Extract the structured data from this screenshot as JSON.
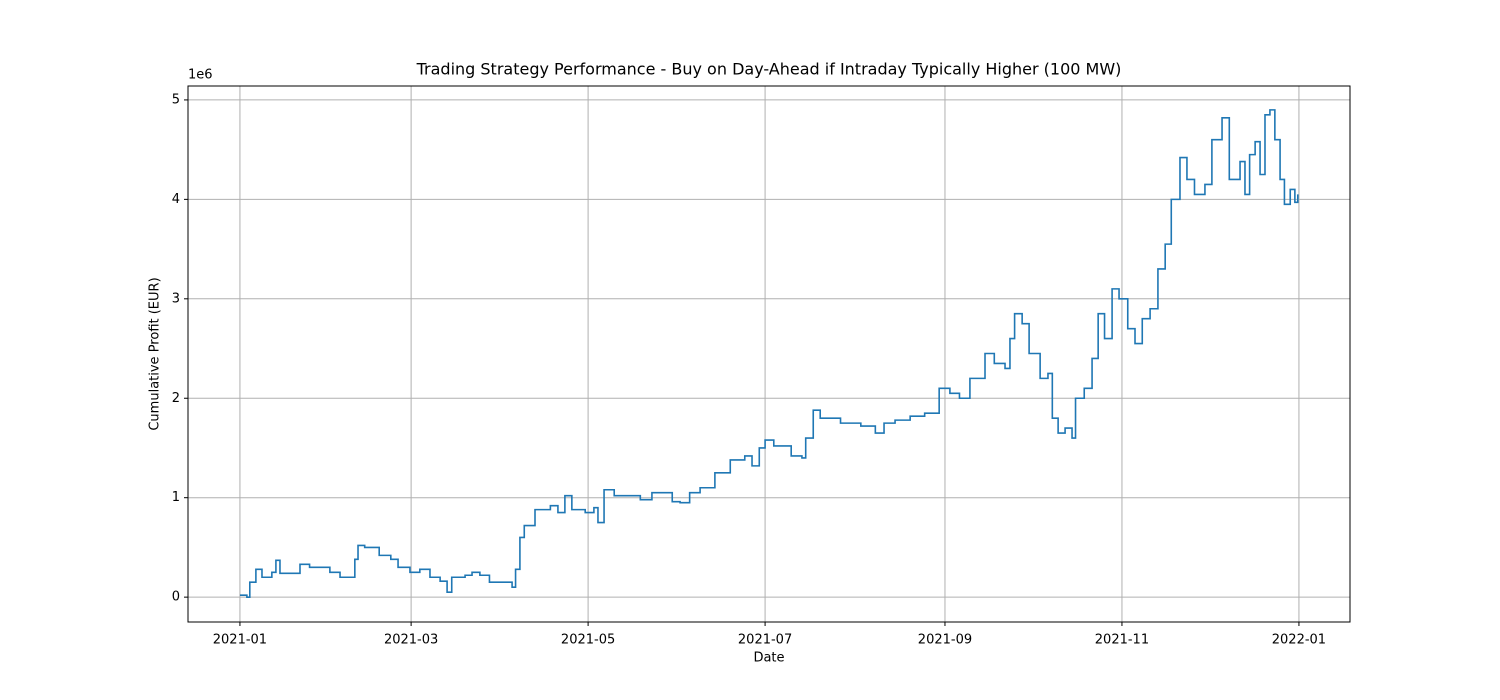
{
  "chart_data": {
    "type": "step",
    "title": "Trading Strategy Performance - Buy on Day-Ahead if Intraday Typically Higher (100 MW)",
    "x_label": "Date",
    "y_label": "Cumulative Profit (EUR)",
    "y_offset_label": "1e6",
    "grid": true,
    "xlim": [
      -17.9,
      382.6
    ],
    "xticks": [
      {
        "value": 0,
        "label": "2021-01"
      },
      {
        "value": 59,
        "label": "2021-03"
      },
      {
        "value": 120,
        "label": "2021-05"
      },
      {
        "value": 181,
        "label": "2021-07"
      },
      {
        "value": 243,
        "label": "2021-09"
      },
      {
        "value": 304,
        "label": "2021-11"
      },
      {
        "value": 365,
        "label": "2022-01"
      }
    ],
    "ylim": [
      -0.25,
      5.14
    ],
    "yticks": [
      0,
      1,
      2,
      3,
      4,
      5
    ],
    "x": [
      0,
      2.4,
      3.4,
      5.5,
      7.6,
      11,
      12.4,
      13.8,
      19,
      20.7,
      24,
      31,
      34.5,
      38,
      39.6,
      40.7,
      43,
      46.5,
      48,
      52,
      54.5,
      58.6,
      62,
      65.5,
      69,
      71.4,
      73,
      77.6,
      80,
      82.7,
      86,
      91,
      93.8,
      95,
      96.5,
      98,
      101.7,
      107,
      109.6,
      112,
      114.4,
      119,
      122,
      123.4,
      125.5,
      129,
      138,
      142,
      144.8,
      149,
      151.7,
      155,
      158.6,
      163.7,
      169,
      174,
      176.5,
      179,
      181,
      184,
      190,
      193.7,
      195,
      197.6,
      200,
      207,
      214,
      219,
      222,
      225.8,
      231,
      236,
      241,
      244.7,
      248,
      251.6,
      256.8,
      260,
      263.7,
      265.4,
      267,
      269.6,
      272,
      275.8,
      278.5,
      280,
      282,
      284.4,
      286.8,
      288,
      291,
      293.7,
      295.8,
      298,
      300.6,
      303,
      306,
      308.5,
      311,
      313.7,
      316.4,
      318.9,
      321,
      324,
      326.4,
      329,
      332.6,
      335,
      338.5,
      341,
      344.7,
      346.4,
      348,
      349.9,
      351.6,
      353.3,
      355,
      356.7,
      358.5,
      360,
      362,
      363.6,
      364.6
    ],
    "series": [
      {
        "name": "Cumulative Profit",
        "color": "#1f77b4",
        "values": [
          0.02,
          0.0,
          0.15,
          0.28,
          0.2,
          0.25,
          0.37,
          0.24,
          0.24,
          0.33,
          0.3,
          0.25,
          0.2,
          0.2,
          0.38,
          0.52,
          0.5,
          0.5,
          0.42,
          0.38,
          0.3,
          0.25,
          0.28,
          0.2,
          0.16,
          0.05,
          0.2,
          0.22,
          0.25,
          0.22,
          0.15,
          0.15,
          0.1,
          0.28,
          0.6,
          0.72,
          0.88,
          0.92,
          0.85,
          1.02,
          0.88,
          0.85,
          0.9,
          0.75,
          1.08,
          1.02,
          0.98,
          1.05,
          1.05,
          0.96,
          0.95,
          1.05,
          1.1,
          1.25,
          1.38,
          1.42,
          1.32,
          1.5,
          1.58,
          1.52,
          1.42,
          1.4,
          1.6,
          1.88,
          1.8,
          1.75,
          1.72,
          1.65,
          1.75,
          1.78,
          1.82,
          1.85,
          2.1,
          2.05,
          2.0,
          2.2,
          2.45,
          2.35,
          2.3,
          2.6,
          2.85,
          2.75,
          2.45,
          2.2,
          2.25,
          1.8,
          1.65,
          1.7,
          1.6,
          2.0,
          2.1,
          2.4,
          2.85,
          2.6,
          3.1,
          3.0,
          2.7,
          2.55,
          2.8,
          2.9,
          3.3,
          3.55,
          4.0,
          4.42,
          4.2,
          4.05,
          4.15,
          4.6,
          4.82,
          4.2,
          4.38,
          4.05,
          4.45,
          4.58,
          4.25,
          4.85,
          4.9,
          4.6,
          4.2,
          3.95,
          4.1,
          3.97,
          4.05
        ]
      }
    ]
  }
}
